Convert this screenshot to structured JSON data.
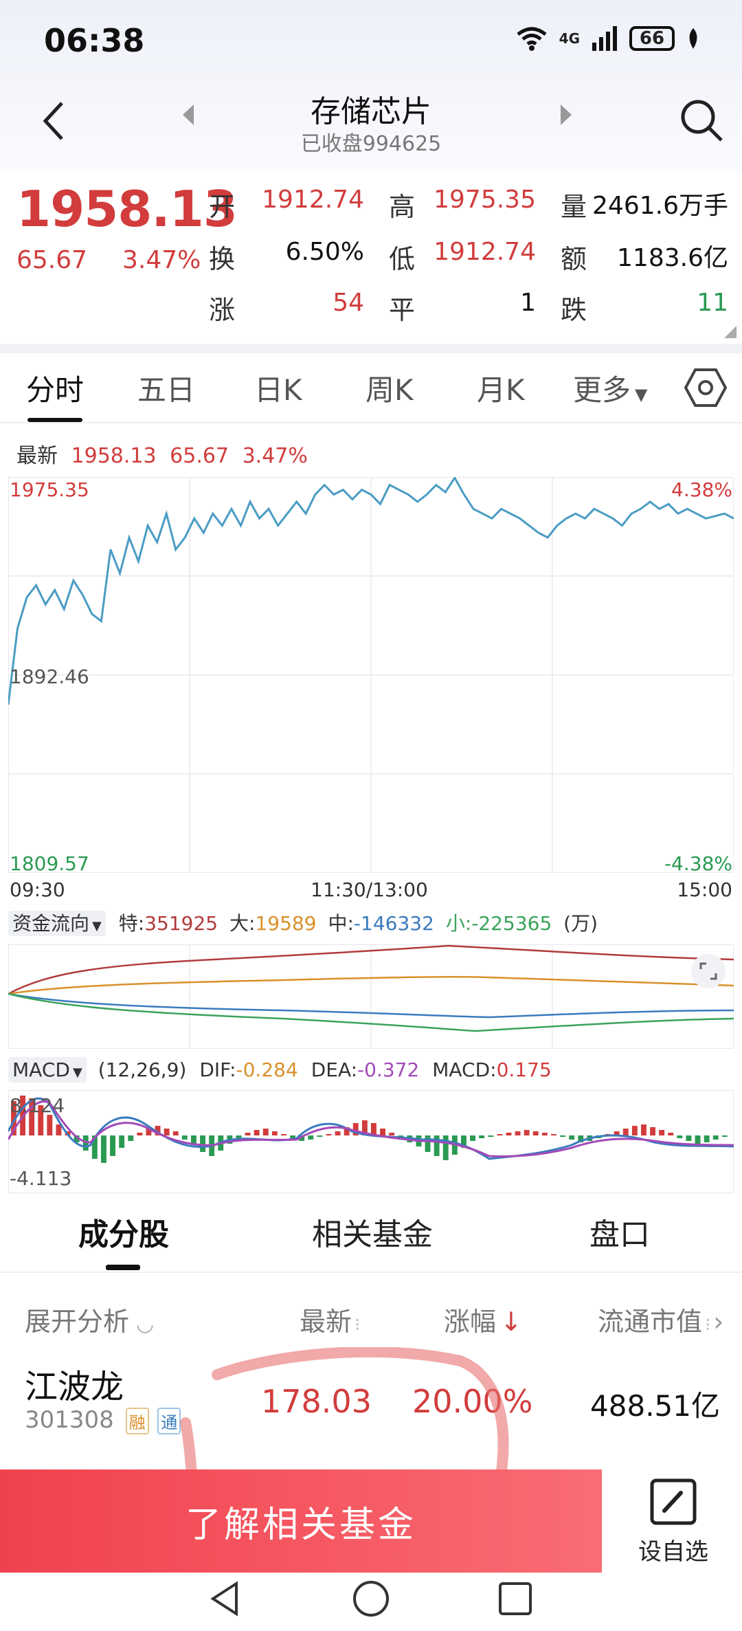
{
  "status_bar": {
    "time": "06:38",
    "network": "4G",
    "battery": "66"
  },
  "header": {
    "title": "存储芯片",
    "subtitle": "已收盘994625"
  },
  "quote": {
    "price": "1958.13",
    "change": "65.67",
    "change_pct": "3.47%",
    "fields": [
      {
        "label": "开",
        "value": "1912.74"
      },
      {
        "label": "高",
        "value": "1975.35"
      },
      {
        "label": "量",
        "value": "2461.6万手"
      },
      {
        "label": "换",
        "value": "6.50%"
      },
      {
        "label": "低",
        "value": "1912.74"
      },
      {
        "label": "额",
        "value": "1183.6亿"
      },
      {
        "label": "涨",
        "value": "54"
      },
      {
        "label": "平",
        "value": "1"
      },
      {
        "label": "跌",
        "value": "11"
      }
    ]
  },
  "chart_tabs": [
    "分时",
    "五日",
    "日K",
    "周K",
    "月K",
    "更多"
  ],
  "latest_line": {
    "label": "最新",
    "price": "1958.13",
    "change": "65.67",
    "pct": "3.47%"
  },
  "chart_data": [
    {
      "type": "line",
      "x_labels": [
        "09:30",
        "11:30/13:00",
        "15:00"
      ],
      "ylim": [
        1809.57,
        1975.35
      ],
      "y_labels_left": [
        "1975.35",
        "1892.46",
        "1809.57"
      ],
      "y_labels_right": [
        "4.38%",
        "-4.38%"
      ],
      "series": [
        {
          "values": [
            1880,
            1912,
            1925,
            1930,
            1922,
            1928,
            1920,
            1932,
            1926,
            1918,
            1915,
            1945,
            1935,
            1950,
            1940,
            1955,
            1948,
            1960,
            1945,
            1950,
            1958,
            1952,
            1960,
            1955,
            1962,
            1955,
            1965,
            1958,
            1962,
            1955,
            1960,
            1965,
            1960,
            1968,
            1972,
            1968,
            1970,
            1966,
            1970,
            1968,
            1964,
            1972,
            1970,
            1968,
            1965,
            1968,
            1972,
            1969,
            1975,
            1968,
            1962,
            1960,
            1958,
            1962,
            1960,
            1958,
            1955,
            1952,
            1950,
            1955,
            1958,
            1960,
            1958,
            1962,
            1960,
            1958,
            1955,
            1960,
            1962,
            1965,
            1962,
            1964,
            1960,
            1962,
            1960,
            1958,
            1959,
            1960,
            1958
          ]
        }
      ]
    },
    {
      "type": "line",
      "title": "资金流向",
      "legend": [
        {
          "name": "特",
          "value": "351925",
          "color": "#b23a3a"
        },
        {
          "name": "大",
          "value": "19589",
          "color": "#d9902a"
        },
        {
          "name": "中",
          "value": "-146332",
          "color": "#3a7bbd"
        },
        {
          "name": "小",
          "value": "-225365",
          "color": "#3aa35a"
        }
      ],
      "unit": "(万)"
    },
    {
      "type": "bar",
      "title": "MACD",
      "params": "(12,26,9)",
      "dif": "-0.284",
      "dea": "-0.372",
      "macd": "0.175",
      "y_labels": [
        "8.124",
        "-4.113"
      ]
    }
  ],
  "sub_tabs": [
    "成分股",
    "相关基金",
    "盘口"
  ],
  "table": {
    "headers": [
      "展开分析",
      "最新",
      "涨幅",
      "流通市值"
    ],
    "rows": [
      {
        "name": "江波龙",
        "code": "301308",
        "badges": [
          "融",
          "通"
        ],
        "price": "178.03",
        "pct": "20.00%",
        "cap": "488.51亿"
      }
    ]
  },
  "cta": {
    "label": "了解相关基金"
  },
  "fav": {
    "label": "设自选"
  }
}
